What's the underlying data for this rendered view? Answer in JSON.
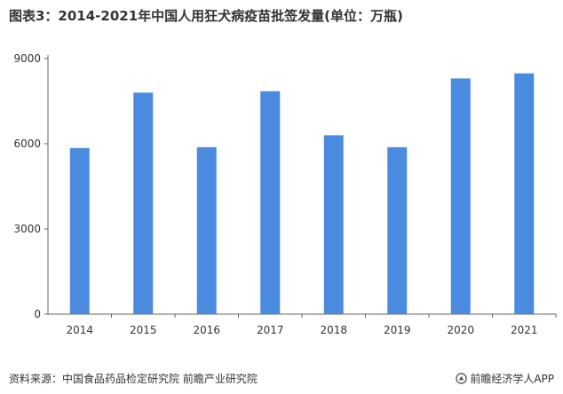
{
  "title": "图表3：2014-2021年中国人用狂犬病疫苗批签发量(单位：万瓶)",
  "footer": {
    "source": "资料来源：中国食品药品检定研究院 前瞻产业研究院",
    "brand": "前瞻经济学人APP",
    "brand_icon": "brand-logo-icon"
  },
  "colors": {
    "bar": "#4a8be0",
    "axis": "#666666",
    "text": "#333333"
  },
  "chart_data": {
    "type": "bar",
    "title": "图表3：2014-2021年中国人用狂犬病疫苗批签发量(单位：万瓶)",
    "categories": [
      "2014",
      "2015",
      "2016",
      "2017",
      "2018",
      "2019",
      "2020",
      "2021"
    ],
    "values": [
      5850,
      7800,
      5880,
      7850,
      6300,
      5880,
      8300,
      8480
    ],
    "xlabel": "",
    "ylabel": "",
    "ylim": [
      0,
      9000
    ],
    "yticks": [
      0,
      3000,
      6000,
      9000
    ],
    "grid": false,
    "legend": "none"
  }
}
